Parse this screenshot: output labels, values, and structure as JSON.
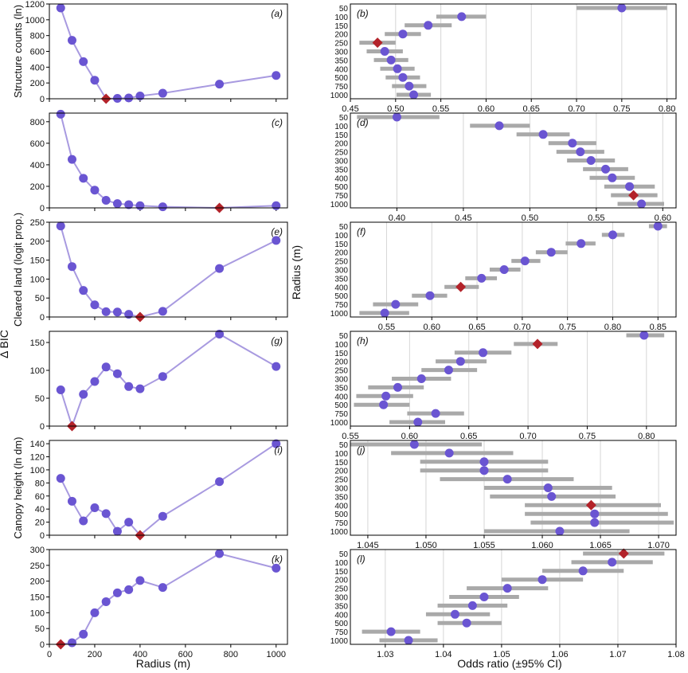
{
  "colors": {
    "point": "#6a55d2",
    "line": "#a89ae0",
    "best": "#b3232a",
    "ci": "#a9a9a9",
    "grid": "#d6d6d6",
    "axis": "#000000"
  },
  "figure": {
    "left_xlabel": "Radius (m)",
    "right_xlabel": "Odds ratio (±95% CI)",
    "left_super_ylabel": "Δ BIC",
    "right_super_ylabel": "Radius (m)"
  },
  "chart_data": [
    {
      "type": "line",
      "panel": "(a)",
      "ylabel": "Structure counts (ln)",
      "xlim": [
        0,
        1050
      ],
      "xticks": [
        0,
        200,
        400,
        600,
        800,
        1000
      ],
      "ylim": [
        0,
        1200
      ],
      "yticks": [
        0,
        200,
        400,
        600,
        800,
        1000,
        1200
      ],
      "x": [
        50,
        100,
        150,
        200,
        250,
        300,
        350,
        400,
        500,
        750,
        1000
      ],
      "y": [
        1150,
        740,
        470,
        235,
        0,
        5,
        10,
        35,
        70,
        185,
        295
      ],
      "best_index": 4
    },
    {
      "type": "scatter",
      "panel": "(b)",
      "xlim": [
        0.45,
        0.81
      ],
      "xticks": [
        "0.45",
        "0.50",
        "0.55",
        "0.60",
        "0.65",
        "0.70",
        "0.75",
        "0.80"
      ],
      "categories": [
        "50",
        "100",
        "150",
        "200",
        "250",
        "300",
        "350",
        "400",
        "500",
        "750",
        "1000"
      ],
      "estimate": [
        0.75,
        0.573,
        0.536,
        0.508,
        0.48,
        0.488,
        0.495,
        0.502,
        0.508,
        0.515,
        0.52
      ],
      "ci_low": [
        0.7,
        0.545,
        0.51,
        0.488,
        0.46,
        0.468,
        0.476,
        0.483,
        0.489,
        0.496,
        0.501
      ],
      "ci_high": [
        0.8,
        0.6,
        0.562,
        0.528,
        0.5,
        0.508,
        0.514,
        0.521,
        0.527,
        0.534,
        0.539
      ],
      "best_index": 4
    },
    {
      "type": "line",
      "panel": "(c)",
      "xlim": [
        0,
        1050
      ],
      "xticks": [
        0,
        200,
        400,
        600,
        800,
        1000
      ],
      "ylim": [
        0,
        880
      ],
      "yticks": [
        0,
        200,
        400,
        600,
        800
      ],
      "x": [
        50,
        100,
        150,
        200,
        250,
        300,
        350,
        400,
        500,
        750,
        1000
      ],
      "y": [
        870,
        450,
        275,
        165,
        70,
        40,
        30,
        20,
        10,
        0,
        20
      ],
      "best_index": 9
    },
    {
      "type": "scatter",
      "panel": "(d)",
      "xlim": [
        0.365,
        0.61
      ],
      "xticks": [
        "0.40",
        "0.45",
        "0.50",
        "0.55",
        "0.60"
      ],
      "categories": [
        "50",
        "100",
        "150",
        "200",
        "250",
        "300",
        "350",
        "400",
        "500",
        "750",
        "1000"
      ],
      "estimate": [
        0.4,
        0.477,
        0.51,
        0.532,
        0.538,
        0.546,
        0.557,
        0.562,
        0.575,
        0.578,
        0.584
      ],
      "ci_low": [
        0.37,
        0.455,
        0.49,
        0.514,
        0.52,
        0.528,
        0.54,
        0.545,
        0.556,
        0.561,
        0.566
      ],
      "ci_high": [
        0.432,
        0.5,
        0.53,
        0.55,
        0.556,
        0.564,
        0.574,
        0.579,
        0.594,
        0.596,
        0.601
      ],
      "best_index": 9
    },
    {
      "type": "line",
      "panel": "(e)",
      "ylabel": "Cleared land (logit prop.)",
      "xlim": [
        0,
        1050
      ],
      "xticks": [
        0,
        200,
        400,
        600,
        800,
        1000
      ],
      "ylim": [
        0,
        250
      ],
      "yticks": [
        0,
        50,
        100,
        150,
        200,
        250
      ],
      "x": [
        50,
        100,
        150,
        200,
        250,
        300,
        350,
        400,
        500,
        750,
        1000
      ],
      "y": [
        240,
        133,
        70,
        32,
        14,
        13,
        7,
        0,
        15,
        128,
        202
      ],
      "best_index": 7
    },
    {
      "type": "scatter",
      "panel": "(f)",
      "xlim": [
        0.51,
        0.87
      ],
      "xticks": [
        "0.55",
        "0.60",
        "0.65",
        "0.70",
        "0.75",
        "0.80",
        "0.85"
      ],
      "categories": [
        "50",
        "100",
        "150",
        "200",
        "250",
        "300",
        "350",
        "400",
        "500",
        "750",
        "1000"
      ],
      "estimate": [
        0.85,
        0.8,
        0.765,
        0.732,
        0.703,
        0.68,
        0.655,
        0.632,
        0.598,
        0.56,
        0.548
      ],
      "ci_low": [
        0.84,
        0.788,
        0.748,
        0.715,
        0.688,
        0.664,
        0.637,
        0.614,
        0.578,
        0.535,
        0.52
      ],
      "ci_high": [
        0.86,
        0.813,
        0.781,
        0.75,
        0.72,
        0.698,
        0.672,
        0.652,
        0.617,
        0.585,
        0.575
      ],
      "best_index": 7
    },
    {
      "type": "line",
      "panel": "(g)",
      "xlim": [
        0,
        1050
      ],
      "xticks": [
        0,
        200,
        400,
        600,
        800,
        1000
      ],
      "ylim": [
        0,
        170
      ],
      "yticks": [
        0,
        50,
        100,
        150
      ],
      "x": [
        50,
        100,
        150,
        200,
        250,
        300,
        350,
        400,
        500,
        750,
        1000
      ],
      "y": [
        65,
        0,
        57,
        80,
        106,
        94,
        71,
        67,
        89,
        165,
        107
      ],
      "best_index": 1
    },
    {
      "type": "scatter",
      "panel": "(h)",
      "xlim": [
        0.55,
        0.825
      ],
      "xticks": [
        "0.55",
        "0.60",
        "0.65",
        "0.70",
        "0.75",
        "0.80"
      ],
      "categories": [
        "50",
        "100",
        "150",
        "200",
        "250",
        "300",
        "350",
        "400",
        "500",
        "750",
        "1000"
      ],
      "estimate": [
        0.798,
        0.708,
        0.662,
        0.643,
        0.633,
        0.61,
        0.59,
        0.58,
        0.578,
        0.622,
        0.607
      ],
      "ci_low": [
        0.783,
        0.688,
        0.638,
        0.622,
        0.61,
        0.585,
        0.565,
        0.555,
        0.553,
        0.598,
        0.583
      ],
      "ci_high": [
        0.815,
        0.725,
        0.686,
        0.665,
        0.657,
        0.635,
        0.612,
        0.603,
        0.6,
        0.646,
        0.63
      ],
      "best_index": 1
    },
    {
      "type": "line",
      "panel": "(i)",
      "ylabel": "Canopy height (ln dm)",
      "xlim": [
        0,
        1050
      ],
      "xticks": [
        0,
        200,
        400,
        600,
        800,
        1000
      ],
      "ylim": [
        0,
        145
      ],
      "yticks": [
        0,
        20,
        40,
        60,
        80,
        100,
        120,
        140
      ],
      "x": [
        50,
        100,
        150,
        200,
        250,
        300,
        350,
        400,
        500,
        750,
        1000
      ],
      "y": [
        87,
        52,
        22,
        42,
        33,
        6,
        20,
        0,
        29,
        82,
        140
      ],
      "best_index": 7
    },
    {
      "type": "scatter",
      "panel": "(j)",
      "xlim": [
        1.0435,
        1.0715
      ],
      "xticks": [
        "1.045",
        "1.050",
        "1.055",
        "1.060",
        "1.065",
        "1.070"
      ],
      "categories": [
        "50",
        "100",
        "150",
        "200",
        "250",
        "300",
        "350",
        "400",
        "500",
        "750",
        "1000"
      ],
      "estimate": [
        1.049,
        1.052,
        1.055,
        1.055,
        1.057,
        1.0605,
        1.0608,
        1.0642,
        1.0645,
        1.0645,
        1.0615
      ],
      "ci_low": [
        1.0435,
        1.047,
        1.0495,
        1.0495,
        1.0512,
        1.055,
        1.0555,
        1.0585,
        1.0585,
        1.059,
        1.055
      ],
      "ci_high": [
        1.0548,
        1.0575,
        1.0605,
        1.0605,
        1.0627,
        1.066,
        1.0663,
        1.0702,
        1.0708,
        1.0713,
        1.0675
      ],
      "best_index": 7
    },
    {
      "type": "line",
      "panel": "(k)",
      "xlim": [
        0,
        1050
      ],
      "xticks": [
        0,
        200,
        400,
        600,
        800,
        1000
      ],
      "ylim": [
        0,
        300
      ],
      "yticks": [
        0,
        50,
        100,
        150,
        200,
        250,
        300
      ],
      "x": [
        50,
        100,
        150,
        200,
        250,
        300,
        350,
        400,
        500,
        750,
        1000
      ],
      "y": [
        0,
        5,
        32,
        100,
        135,
        163,
        173,
        202,
        180,
        287,
        241
      ],
      "best_index": 0
    },
    {
      "type": "scatter",
      "panel": "(l)",
      "xlim": [
        1.024,
        1.08
      ],
      "xticks": [
        "1.03",
        "1.04",
        "1.05",
        "1.06",
        "1.07",
        "1.08"
      ],
      "categories": [
        "50",
        "100",
        "150",
        "200",
        "250",
        "300",
        "350",
        "400",
        "500",
        "750",
        "1000"
      ],
      "estimate": [
        1.071,
        1.069,
        1.064,
        1.057,
        1.051,
        1.047,
        1.045,
        1.042,
        1.044,
        1.031,
        1.034
      ],
      "ci_low": [
        1.064,
        1.062,
        1.057,
        1.05,
        1.044,
        1.041,
        1.039,
        1.037,
        1.039,
        1.026,
        1.029
      ],
      "ci_high": [
        1.078,
        1.076,
        1.071,
        1.064,
        1.058,
        1.053,
        1.051,
        1.048,
        1.05,
        1.036,
        1.039
      ],
      "best_index": 0
    }
  ]
}
